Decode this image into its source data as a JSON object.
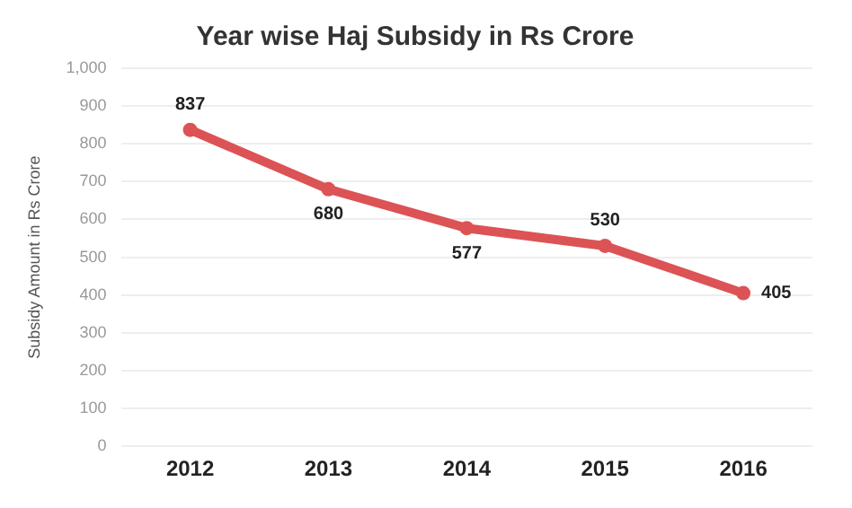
{
  "chart_data": {
    "type": "line",
    "title": "Year wise Haj Subsidy in Rs Crore",
    "ylabel": "Subsidy Amount in Rs Crore",
    "categories": [
      "2012",
      "2013",
      "2014",
      "2015",
      "2016"
    ],
    "series": [
      {
        "color": "#dc5355",
        "values": [
          837,
          680,
          577,
          530,
          405
        ]
      }
    ],
    "ylim": [
      0,
      1000
    ],
    "yticks": [
      0,
      100,
      200,
      300,
      400,
      500,
      600,
      700,
      800,
      900,
      {
        "value": 1000,
        "label": "1,000"
      }
    ],
    "grid": "y",
    "marker": "circle",
    "line_style": "solid",
    "data_labels": true,
    "legend": false
  }
}
